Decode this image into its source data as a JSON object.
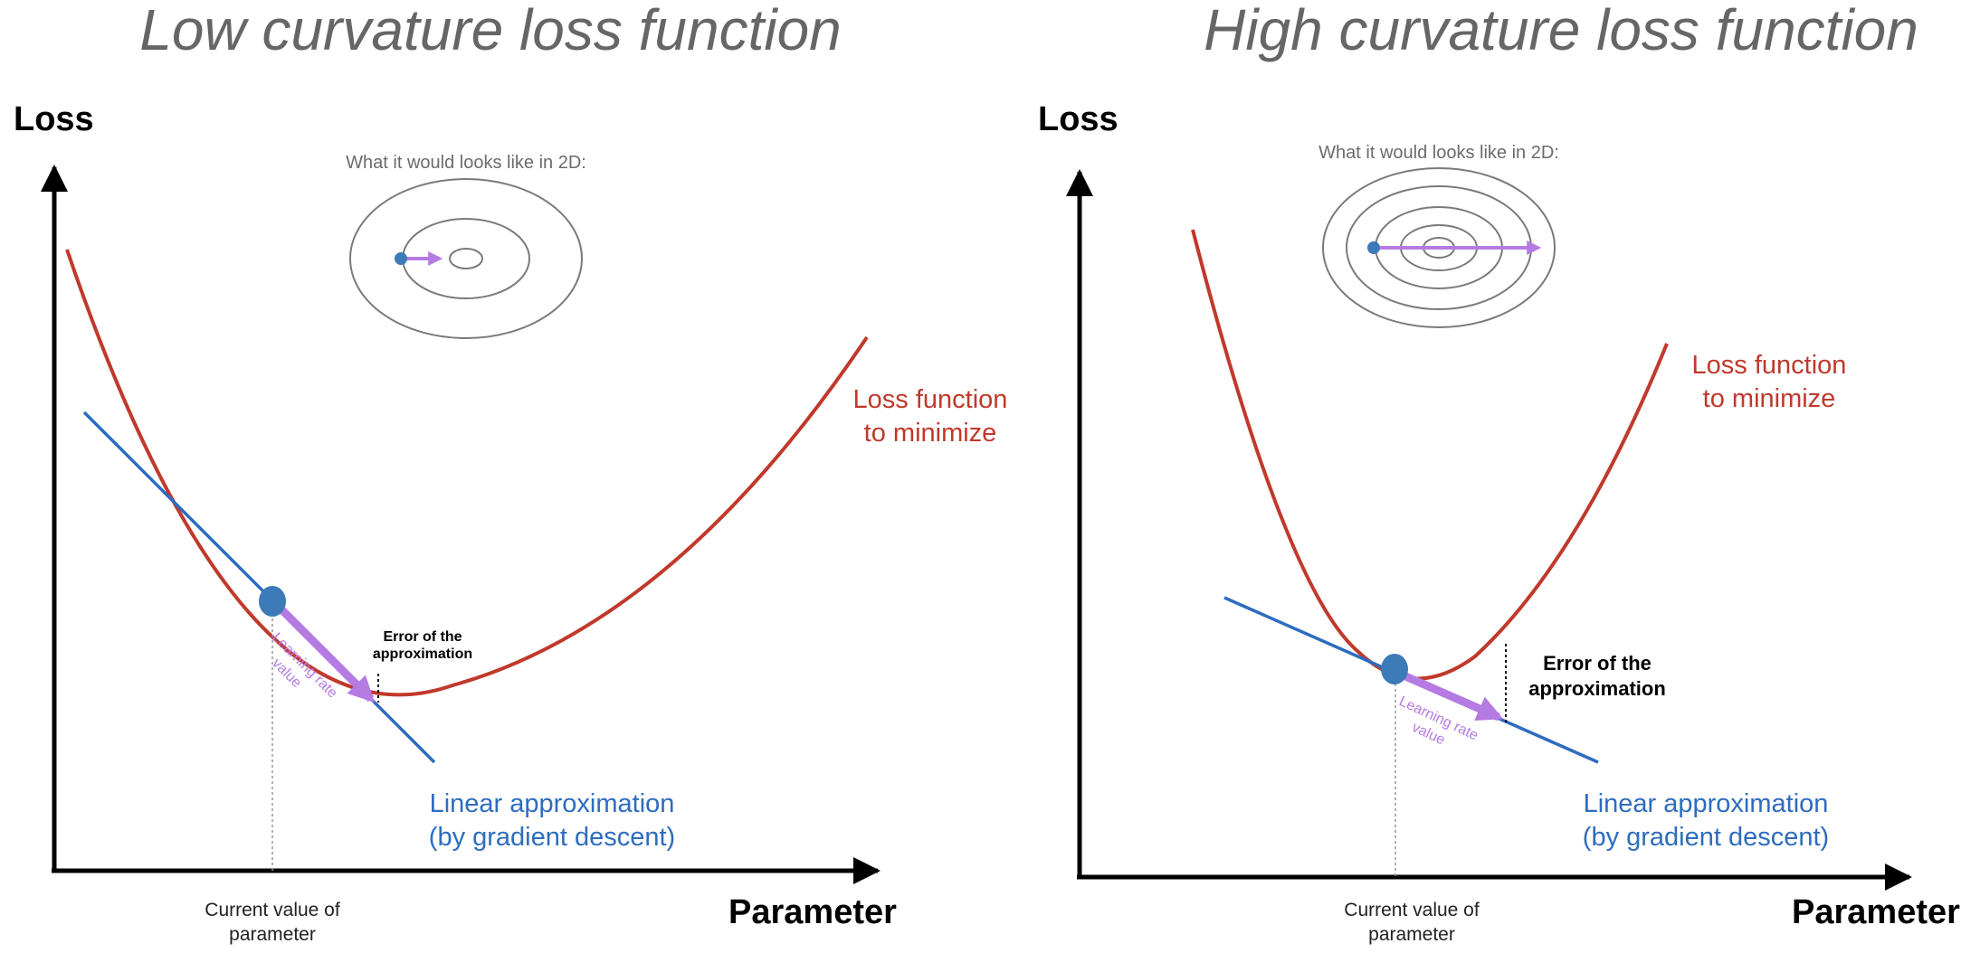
{
  "panels": [
    {
      "title": "Low curvature loss function",
      "y_axis_label": "Loss",
      "x_axis_label": "Parameter",
      "inset_caption": "What it would looks like in 2D:",
      "loss_label_line1": "Loss function",
      "loss_label_line2": "to minimize",
      "linear_label_line1": "Linear approximation",
      "linear_label_line2": "(by gradient descent)",
      "error_label_line1": "Error of the",
      "error_label_line2": "approximation",
      "lr_label_line1": "Learning rate",
      "lr_label_line2": "value",
      "current_label_line1": "Current value of",
      "current_label_line2": "parameter"
    },
    {
      "title": "High curvature loss function",
      "y_axis_label": "Loss",
      "x_axis_label": "Parameter",
      "inset_caption": "What it would looks like in 2D:",
      "loss_label_line1": "Loss function",
      "loss_label_line2": "to minimize",
      "linear_label_line1": "Linear approximation",
      "linear_label_line2": "(by gradient descent)",
      "error_label_line1": "Error of the",
      "error_label_line2": "approximation",
      "lr_label_line1": "Learning rate",
      "lr_label_line2": "value",
      "current_label_line1": "Current value of",
      "current_label_line2": "parameter"
    }
  ],
  "colors": {
    "loss_curve": "#c0392b",
    "linear_approx": "#2d6cc0",
    "learning_rate_arrow": "#b57be3",
    "current_point": "#3d7ab8",
    "contour": "#7a7a7a",
    "axis": "#000000"
  }
}
